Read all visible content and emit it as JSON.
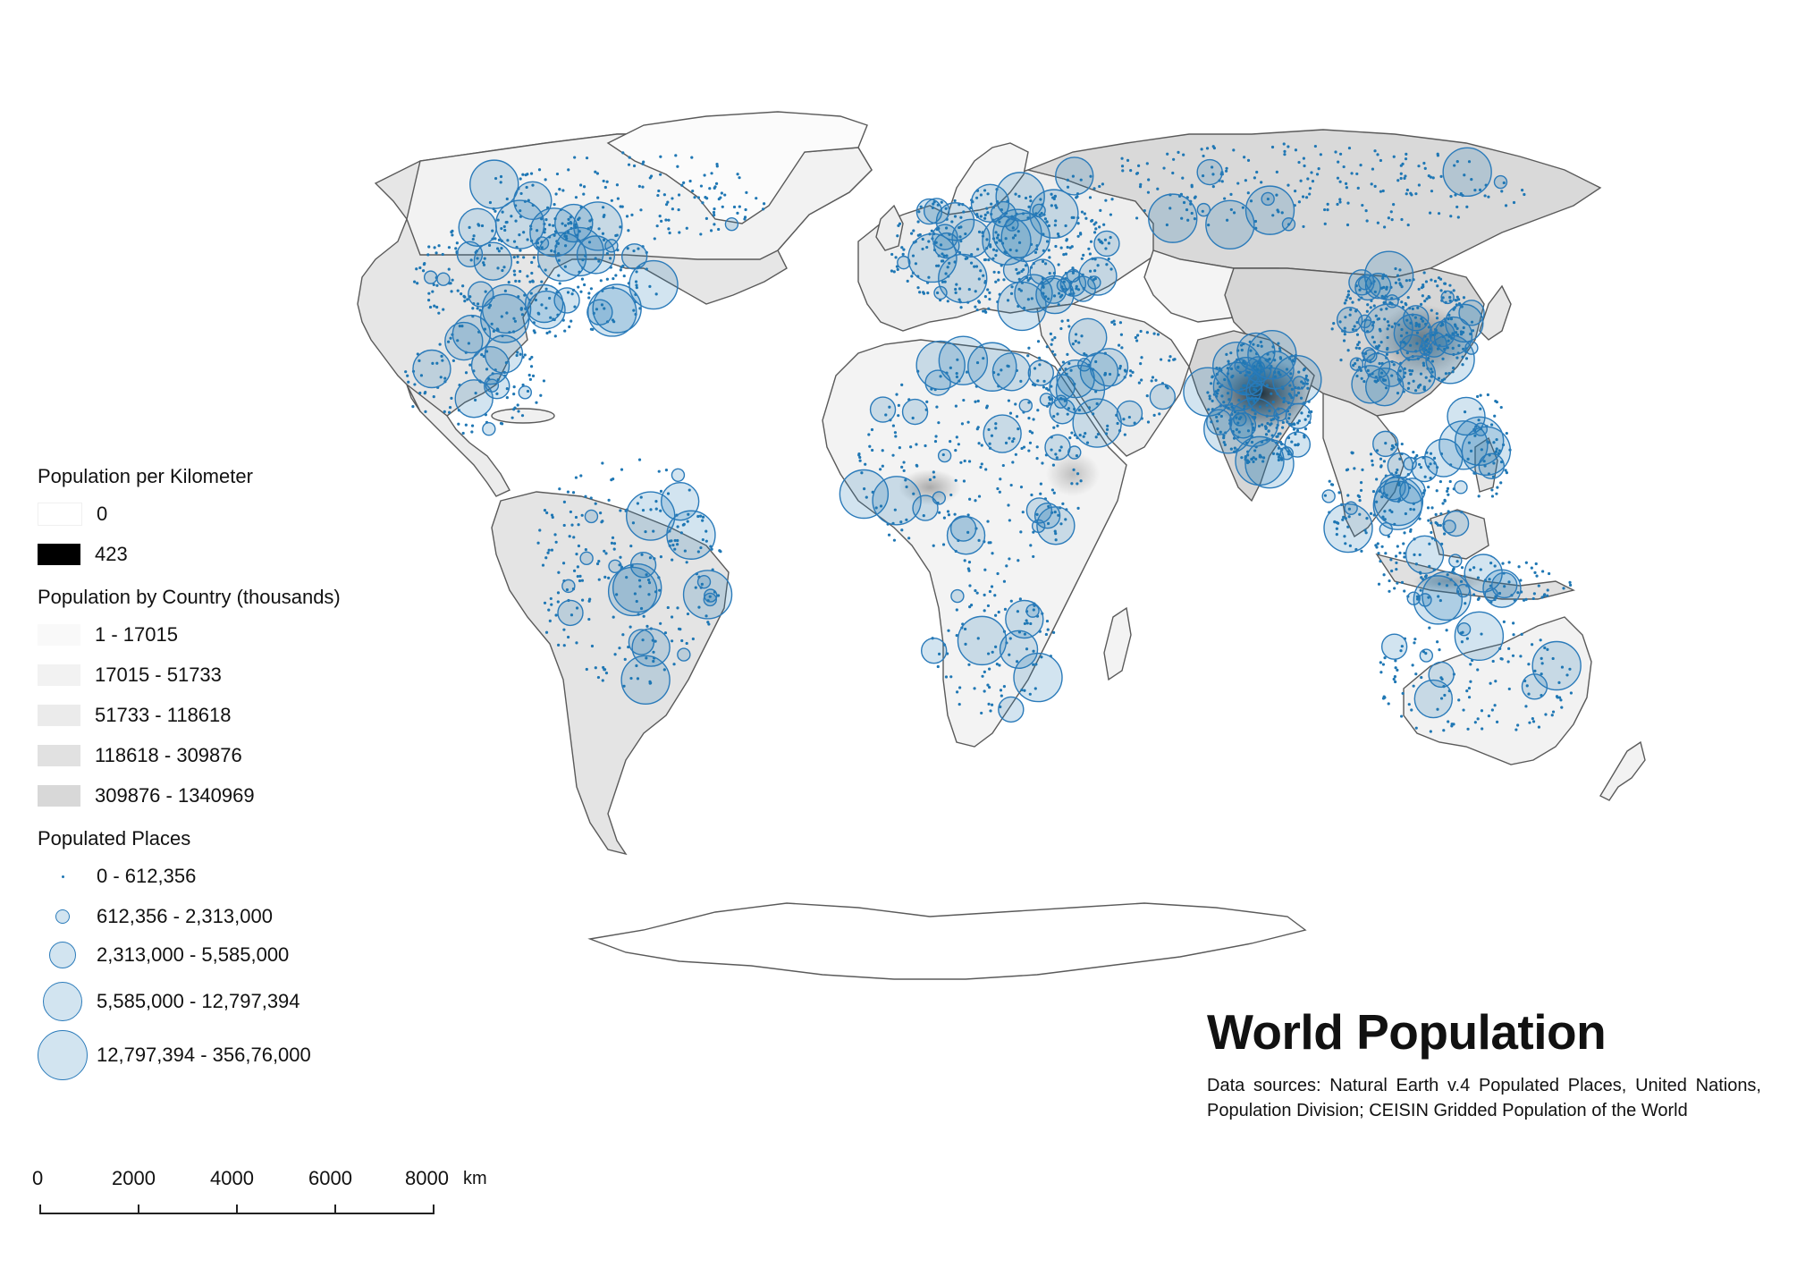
{
  "map": {
    "title": "World Population",
    "sources": "Data sources: Natural Earth v.4 Populated Places, United Nations, Population Division; CEISIN Gridded Population of the World",
    "colors": {
      "point": "#1f77b4",
      "circle_fill": "rgba(31,119,180,0.20)",
      "circle_stroke": "#2b7bba",
      "land_border": "#555555"
    }
  },
  "legend": {
    "density": {
      "title": "Population per Kilometer",
      "items": [
        {
          "label": "0",
          "color": "#ffffff"
        },
        {
          "label": "423",
          "color": "#000000"
        }
      ]
    },
    "country": {
      "title": "Population by Country (thousands)",
      "items": [
        {
          "label": "1 - 17015",
          "color": "#f9f9f9"
        },
        {
          "label": "17015 - 51733",
          "color": "#f2f2f2"
        },
        {
          "label": "51733 - 118618",
          "color": "#ebebeb"
        },
        {
          "label": "118618 - 309876",
          "color": "#e1e1e1"
        },
        {
          "label": "309876 - 1340969",
          "color": "#d8d8d8"
        }
      ]
    },
    "places": {
      "title": "Populated Places",
      "items": [
        {
          "label": "0 - 612,356",
          "size_class": 1
        },
        {
          "label": "612,356 - 2,313,000",
          "size_class": 2
        },
        {
          "label": "2,313,000 - 5,585,000",
          "size_class": 3
        },
        {
          "label": "5,585,000 - 12,797,394",
          "size_class": 4
        },
        {
          "label": "12,797,394 - 356,76,000",
          "size_class": 5
        }
      ]
    }
  },
  "scale_bar": {
    "ticks": [
      "0",
      "2000",
      "4000",
      "6000",
      "8000"
    ],
    "unit": "km"
  }
}
